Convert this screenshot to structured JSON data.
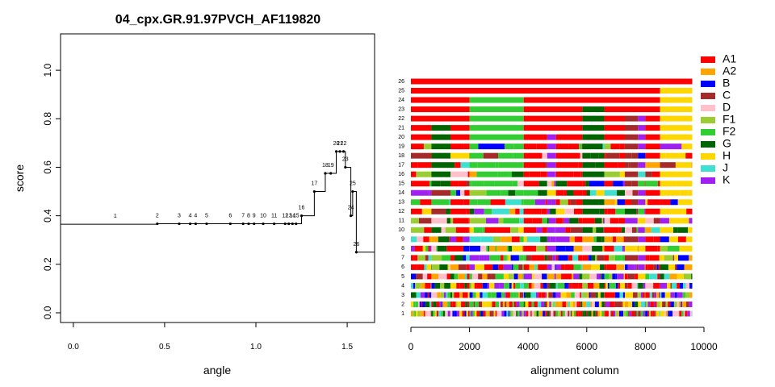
{
  "chart_data": [
    {
      "type": "line",
      "title": "04_cpx.GR.91.97PVCH_AF119820",
      "xlabel": "angle",
      "ylabel": "score",
      "xlim": [
        -0.07,
        1.65
      ],
      "ylim": [
        -0.04,
        1.15
      ],
      "xticks": [
        "0.0",
        "0.5",
        "1.0",
        "1.5"
      ],
      "xtick_values": [
        0,
        0.5,
        1,
        1.5
      ],
      "yticks": [
        "0.0",
        "0.2",
        "0.4",
        "0.6",
        "0.8",
        "1.0"
      ],
      "ytick_values": [
        0,
        0.2,
        0.4,
        0.6,
        0.8,
        1.0
      ],
      "steps": [
        {
          "label": "1",
          "x": 0.23,
          "y": 0.365
        },
        {
          "label": "2",
          "x": 0.46,
          "y": 0.367
        },
        {
          "label": "3",
          "x": 0.58,
          "y": 0.367
        },
        {
          "label": "4",
          "x": 0.64,
          "y": 0.367
        },
        {
          "label": "4",
          "x": 0.67,
          "y": 0.367
        },
        {
          "label": "5",
          "x": 0.73,
          "y": 0.367
        },
        {
          "label": "6",
          "x": 0.86,
          "y": 0.367
        },
        {
          "label": "7",
          "x": 0.93,
          "y": 0.367
        },
        {
          "label": "8",
          "x": 0.96,
          "y": 0.367
        },
        {
          "label": "9",
          "x": 0.99,
          "y": 0.367
        },
        {
          "label": "10",
          "x": 1.04,
          "y": 0.367
        },
        {
          "label": "11",
          "x": 1.1,
          "y": 0.367
        },
        {
          "label": "12",
          "x": 1.16,
          "y": 0.367
        },
        {
          "label": "13",
          "x": 1.18,
          "y": 0.367
        },
        {
          "label": "14",
          "x": 1.2,
          "y": 0.367
        },
        {
          "label": "15",
          "x": 1.22,
          "y": 0.367
        },
        {
          "label": "16",
          "x": 1.25,
          "y": 0.4
        },
        {
          "label": "17",
          "x": 1.32,
          "y": 0.5
        },
        {
          "label": "18",
          "x": 1.38,
          "y": 0.575
        },
        {
          "label": "19",
          "x": 1.41,
          "y": 0.575
        },
        {
          "label": "20",
          "x": 1.44,
          "y": 0.665
        },
        {
          "label": "21",
          "x": 1.46,
          "y": 0.665
        },
        {
          "label": "22",
          "x": 1.48,
          "y": 0.665
        },
        {
          "label": "23",
          "x": 1.49,
          "y": 0.6
        },
        {
          "label": "24",
          "x": 1.52,
          "y": 0.4
        },
        {
          "label": "25",
          "x": 1.53,
          "y": 0.5
        },
        {
          "label": "26",
          "x": 1.55,
          "y": 0.25
        }
      ]
    },
    {
      "type": "bar",
      "xlabel": "alignment column",
      "xlim": [
        0,
        10000
      ],
      "xticks": [
        "0",
        "2000",
        "4000",
        "6000",
        "8000",
        "10000"
      ],
      "xtick_values": [
        0,
        2000,
        4000,
        6000,
        8000,
        10000
      ],
      "alignment_length": 9600,
      "row_labels": [
        "1",
        "2",
        "3",
        "4",
        "5",
        "6",
        "7",
        "8",
        "9",
        "10",
        "11",
        "12",
        "13",
        "14",
        "15",
        "16",
        "17",
        "18",
        "19",
        "20",
        "21",
        "22",
        "23",
        "24",
        "25",
        "26"
      ],
      "subtypes": [
        "A1",
        "A2",
        "B",
        "C",
        "D",
        "F1",
        "F2",
        "G",
        "H",
        "J",
        "K"
      ],
      "colors": {
        "A1": "#ff0000",
        "A2": "#ffa500",
        "B": "#0000ff",
        "C": "#a52a2a",
        "D": "#ffc0cb",
        "F1": "#9acd32",
        "F2": "#32cd32",
        "G": "#006400",
        "H": "#ffd700",
        "J": "#40e0d0",
        "K": "#a020f0"
      },
      "rows": {
        "26": [
          [
            0,
            9600,
            "A1"
          ]
        ],
        "25": [
          [
            0,
            8500,
            "A1"
          ],
          [
            8500,
            9600,
            "H"
          ]
        ],
        "24": [
          [
            0,
            2000,
            "A1"
          ],
          [
            2000,
            3850,
            "F2"
          ],
          [
            3850,
            8500,
            "A1"
          ],
          [
            8500,
            9600,
            "H"
          ]
        ],
        "23": [
          [
            0,
            2000,
            "A1"
          ],
          [
            2000,
            3850,
            "F2"
          ],
          [
            3850,
            5850,
            "A1"
          ],
          [
            5850,
            6600,
            "G"
          ],
          [
            6600,
            8500,
            "A1"
          ],
          [
            8500,
            9600,
            "H"
          ]
        ],
        "22": [
          [
            0,
            2000,
            "A1"
          ],
          [
            2000,
            3850,
            "F2"
          ],
          [
            3850,
            5850,
            "A1"
          ],
          [
            5850,
            6600,
            "G"
          ],
          [
            6600,
            7300,
            "A1"
          ],
          [
            7300,
            7750,
            "C"
          ],
          [
            7750,
            8000,
            "K"
          ],
          [
            8000,
            8500,
            "A1"
          ],
          [
            8500,
            9600,
            "H"
          ]
        ],
        "21": [
          [
            0,
            700,
            "A1"
          ],
          [
            700,
            1350,
            "G"
          ],
          [
            1350,
            2000,
            "A1"
          ],
          [
            2000,
            3850,
            "F2"
          ],
          [
            3850,
            5850,
            "A1"
          ],
          [
            5850,
            6600,
            "G"
          ],
          [
            6600,
            7300,
            "A1"
          ],
          [
            7300,
            7750,
            "C"
          ],
          [
            7750,
            8000,
            "K"
          ],
          [
            8000,
            8500,
            "A1"
          ],
          [
            8500,
            9600,
            "H"
          ]
        ],
        "20": [
          [
            0,
            700,
            "A1"
          ],
          [
            700,
            1350,
            "G"
          ],
          [
            1350,
            2000,
            "A1"
          ],
          [
            2000,
            3850,
            "F2"
          ],
          [
            3850,
            4650,
            "A1"
          ],
          [
            4650,
            4950,
            "K"
          ],
          [
            4950,
            5850,
            "A1"
          ],
          [
            5850,
            6600,
            "G"
          ],
          [
            6600,
            7300,
            "A1"
          ],
          [
            7300,
            7750,
            "C"
          ],
          [
            7750,
            8000,
            "K"
          ],
          [
            8000,
            8500,
            "A1"
          ],
          [
            8500,
            9600,
            "H"
          ]
        ]
      },
      "mosaic": true
    }
  ],
  "legend": [
    {
      "label": "A1",
      "color": "#ff0000"
    },
    {
      "label": "A2",
      "color": "#ffa500"
    },
    {
      "label": "B",
      "color": "#0000ff"
    },
    {
      "label": "C",
      "color": "#a52a2a"
    },
    {
      "label": "D",
      "color": "#ffc0cb"
    },
    {
      "label": "F1",
      "color": "#9acd32"
    },
    {
      "label": "F2",
      "color": "#32cd32"
    },
    {
      "label": "G",
      "color": "#006400"
    },
    {
      "label": "H",
      "color": "#ffd700"
    },
    {
      "label": "J",
      "color": "#40e0d0"
    },
    {
      "label": "K",
      "color": "#a020f0"
    }
  ]
}
